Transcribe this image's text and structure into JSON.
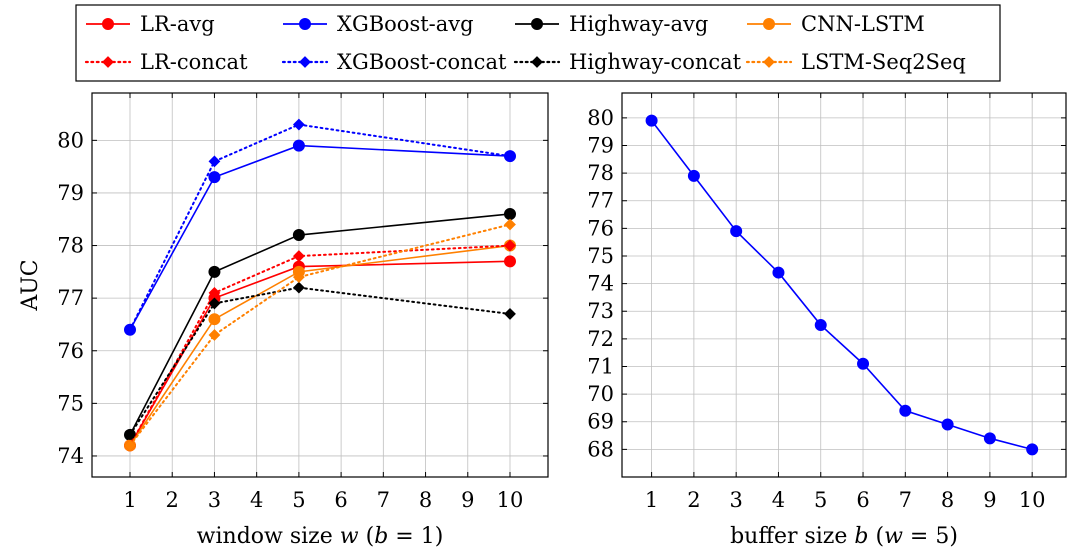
{
  "chart_data": [
    {
      "type": "line",
      "xlabel": "window size w (b = 1)",
      "ylabel": "AUC",
      "x": [
        1,
        3,
        5,
        10
      ],
      "xticks": [
        1,
        2,
        3,
        4,
        5,
        6,
        7,
        8,
        9,
        10
      ],
      "yticks": [
        74,
        75,
        76,
        77,
        78,
        79,
        80
      ],
      "xlim": [
        0.1,
        10.9
      ],
      "ylim": [
        73.6,
        80.9
      ],
      "grid": true,
      "legend_placement": "top, shared",
      "series": [
        {
          "name": "LR-avg",
          "style": "solid",
          "marker": "circle",
          "color": "#ff0000",
          "values": [
            74.2,
            77.0,
            77.6,
            77.7
          ]
        },
        {
          "name": "XGBoost-avg",
          "style": "solid",
          "marker": "circle",
          "color": "#0000ff",
          "values": [
            76.4,
            79.3,
            79.9,
            79.7
          ]
        },
        {
          "name": "Highway-avg",
          "style": "solid",
          "marker": "circle",
          "color": "#000000",
          "values": [
            74.4,
            77.5,
            78.2,
            78.6
          ]
        },
        {
          "name": "CNN-LSTM",
          "style": "solid",
          "marker": "circle",
          "color": "#ff8000",
          "values": [
            74.2,
            76.6,
            77.5,
            78.0
          ]
        },
        {
          "name": "LR-concat",
          "style": "dotted",
          "marker": "diamond",
          "color": "#ff0000",
          "values": [
            74.2,
            77.1,
            77.8,
            78.0
          ]
        },
        {
          "name": "XGBoost-concat",
          "style": "dotted",
          "marker": "diamond",
          "color": "#0000ff",
          "values": [
            76.4,
            79.6,
            80.3,
            79.7
          ]
        },
        {
          "name": "Highway-concat",
          "style": "dotted",
          "marker": "diamond",
          "color": "#000000",
          "values": [
            74.4,
            76.9,
            77.2,
            76.7
          ]
        },
        {
          "name": "LSTM-Seq2Seq",
          "style": "dotted",
          "marker": "diamond",
          "color": "#ff8000",
          "values": [
            74.2,
            76.3,
            77.4,
            78.4
          ]
        }
      ]
    },
    {
      "type": "line",
      "xlabel": "buffer size b (w = 5)",
      "ylabel": "",
      "x": [
        1,
        2,
        3,
        4,
        5,
        6,
        7,
        8,
        9,
        10
      ],
      "xticks": [
        1,
        2,
        3,
        4,
        5,
        6,
        7,
        8,
        9,
        10
      ],
      "yticks": [
        68,
        69,
        70,
        71,
        72,
        73,
        74,
        75,
        76,
        77,
        78,
        79,
        80
      ],
      "xlim": [
        0.3,
        10.8
      ],
      "ylim": [
        67.0,
        80.9
      ],
      "grid": true,
      "series": [
        {
          "style": "solid",
          "marker": "circle",
          "color": "#0000ff",
          "values": [
            79.9,
            77.9,
            75.9,
            74.4,
            72.5,
            71.1,
            69.4,
            68.9,
            68.4,
            68.0
          ]
        }
      ]
    }
  ]
}
